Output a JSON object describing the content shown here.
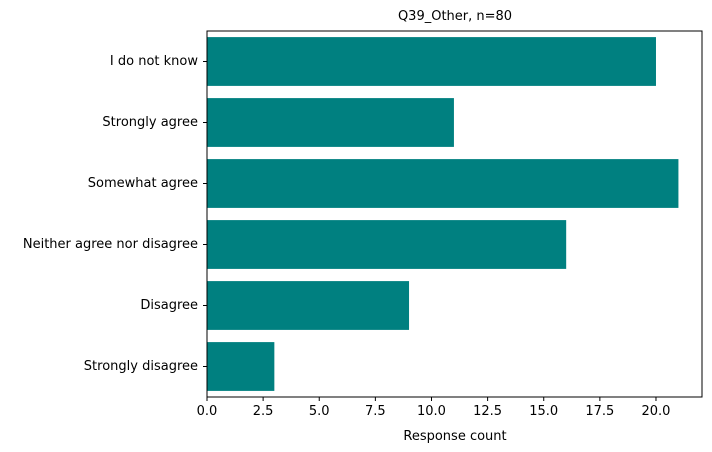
{
  "chart_data": {
    "type": "bar",
    "orientation": "horizontal",
    "title": "Q39_Other, n=80",
    "xlabel": "Response count",
    "ylabel": "",
    "categories": [
      "Strongly disagree",
      "Disagree",
      "Neither agree nor disagree",
      "Somewhat agree",
      "Strongly agree",
      "I do not know"
    ],
    "values": [
      3,
      9,
      16,
      21,
      11,
      20
    ],
    "xlim": [
      0,
      22.05
    ],
    "xticks": [
      0,
      2.5,
      5,
      7.5,
      10,
      12.5,
      15,
      17.5,
      20
    ],
    "xtick_labels": [
      "0.0",
      "2.5",
      "5.0",
      "7.5",
      "10.0",
      "12.5",
      "15.0",
      "17.5",
      "20.0"
    ],
    "bar_color": "#008080",
    "grid": false,
    "legend": "none"
  }
}
